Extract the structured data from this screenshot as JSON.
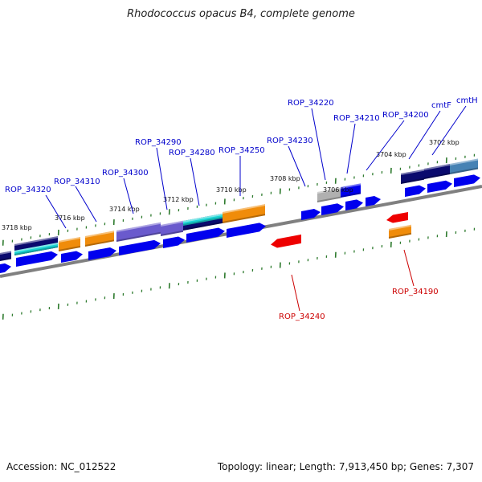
{
  "title": "Rhodococcus opacus B4, complete genome",
  "footer": {
    "accession": "Accession: NC_012522",
    "summary": "Topology: linear; Length: 7,913,450 bp; Genes: 7,307"
  },
  "colors": {
    "label_forward": "#0000cc",
    "label_reverse": "#cc0000",
    "backbone": "#808080",
    "tick": "#2d7a2d",
    "gene_forward": "#0000ee",
    "gene_reverse": "#ee0000",
    "navy": "#0a0a6e",
    "cyan": "#19d4d4",
    "orange": "#f08c0a",
    "purple": "#6a5acd",
    "grey": "#b0b0b0",
    "steelblue": "#4682b4"
  },
  "coordinate_labels": [
    "3718 kbp",
    "3716 kbp",
    "3714 kbp",
    "3712 kbp",
    "3710 kbp",
    "3708 kbp",
    "3706 kbp",
    "3704 kbp",
    "3702 kbp"
  ],
  "gene_labels": [
    {
      "text": "ROP_34320",
      "strand": "forward"
    },
    {
      "text": "ROP_34310",
      "strand": "forward"
    },
    {
      "text": "ROP_34300",
      "strand": "forward"
    },
    {
      "text": "ROP_34290",
      "strand": "forward"
    },
    {
      "text": "ROP_34280",
      "strand": "forward"
    },
    {
      "text": "ROP_34250",
      "strand": "forward"
    },
    {
      "text": "ROP_34230",
      "strand": "forward"
    },
    {
      "text": "ROP_34220",
      "strand": "forward"
    },
    {
      "text": "ROP_34210",
      "strand": "forward"
    },
    {
      "text": "ROP_34200",
      "strand": "forward"
    },
    {
      "text": "cmtF",
      "strand": "forward"
    },
    {
      "text": "cmtH",
      "strand": "forward"
    },
    {
      "text": "ROP_34240",
      "strand": "reverse"
    },
    {
      "text": "ROP_34190",
      "strand": "reverse"
    }
  ]
}
